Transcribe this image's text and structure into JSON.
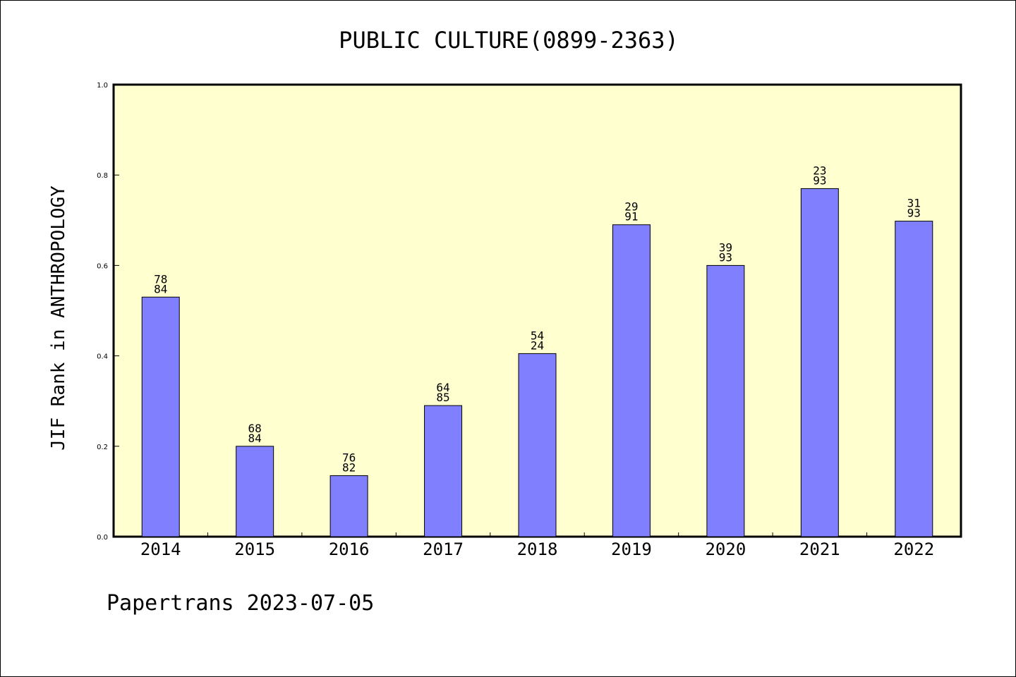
{
  "chart_data": {
    "type": "bar",
    "title": "PUBLIC CULTURE(0899-2363)",
    "ylabel": "JIF Rank in ANTHROPOLOGY",
    "xlabel": "",
    "categories": [
      "2014",
      "2015",
      "2016",
      "2017",
      "2018",
      "2019",
      "2020",
      "2021",
      "2022"
    ],
    "values": [
      0.53,
      0.2,
      0.135,
      0.29,
      0.405,
      0.69,
      0.6,
      0.77,
      0.698
    ],
    "labels": [
      [
        "78",
        "84"
      ],
      [
        "68",
        "84"
      ],
      [
        "76",
        "82"
      ],
      [
        "64",
        "85"
      ],
      [
        "54",
        "24"
      ],
      [
        "29",
        "91"
      ],
      [
        "39",
        "93"
      ],
      [
        "23",
        "93"
      ],
      [
        "31",
        "93"
      ]
    ],
    "ylim": [
      0,
      1.0
    ],
    "yticks": [
      "0.0",
      "0.2",
      "0.4",
      "0.6",
      "0.8",
      "1.0"
    ],
    "grid": false,
    "legend": "none",
    "footer": "Papertrans 2023-07-05",
    "colors": {
      "bar": "#8080ff",
      "plot_background": "#ffffd0",
      "axes": "#000000"
    }
  }
}
